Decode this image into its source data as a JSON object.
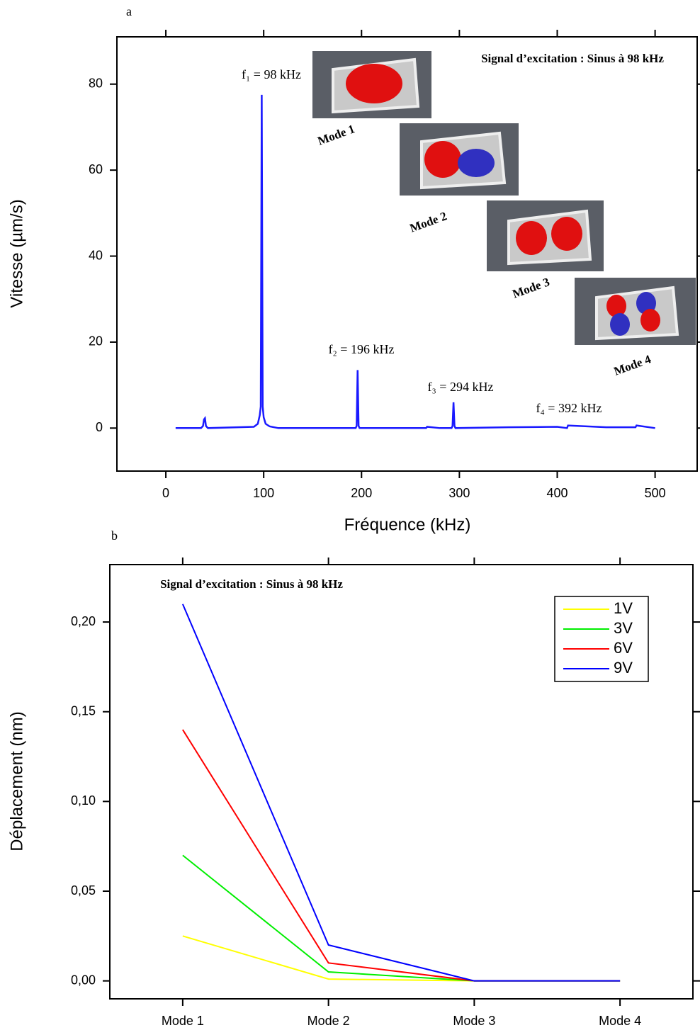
{
  "chart_data": [
    {
      "type": "line",
      "panel": "a",
      "x_label": "Fréquence (kHz)",
      "y_label": "Vitesse (µm/s)",
      "inset_text": "Signal d’excitation : Sinus à 98 kHz",
      "annotations": [
        "f₁ = 98 kHz",
        "f₂ = 196 kHz",
        "f₃ = 294 kHz",
        "f₄ = 392 kHz"
      ],
      "mode_labels": [
        "Mode 1",
        "Mode 2",
        "Mode 3",
        "Mode 4"
      ],
      "xlim": [
        -50,
        543
      ],
      "xticks": [
        0,
        100,
        200,
        300,
        400,
        500
      ],
      "ylim": [
        -10,
        91
      ],
      "yticks": [
        0,
        20,
        40,
        60,
        80
      ],
      "color": "#1a1aff",
      "x": [
        10,
        36,
        38,
        39,
        40,
        41,
        43,
        90,
        94,
        96,
        97,
        98,
        99,
        100,
        102,
        106,
        115,
        150,
        194,
        195,
        196,
        197,
        198,
        250,
        266,
        267,
        280,
        292,
        293,
        294,
        295,
        296,
        350,
        400,
        410,
        411,
        450,
        480,
        481,
        500
      ],
      "values": [
        0,
        0,
        0.5,
        2,
        2.3,
        0.5,
        0,
        0.3,
        1,
        3,
        5,
        77.5,
        5,
        2.5,
        1,
        0.4,
        0,
        0,
        0,
        0.5,
        13.5,
        0.5,
        0,
        0,
        0,
        0.3,
        0,
        0,
        0.5,
        6,
        0.5,
        0,
        0.2,
        0.3,
        0,
        0.6,
        0.2,
        0.2,
        0.6,
        0
      ]
    },
    {
      "type": "line",
      "panel": "b",
      "y_label": "Déplacement (nm)",
      "inset_text": "Signal d’excitation : Sinus à 98 kHz",
      "categories": [
        "Mode 1",
        "Mode 2",
        "Mode 3",
        "Mode 4"
      ],
      "ylim": [
        -0.01,
        0.232
      ],
      "yticks": [
        {
          "value": 0,
          "label": "0,00"
        },
        {
          "value": 0.05,
          "label": "0,05"
        },
        {
          "value": 0.1,
          "label": "0,10"
        },
        {
          "value": 0.15,
          "label": "0,15"
        },
        {
          "value": 0.2,
          "label": "0,20"
        }
      ],
      "legend": "upper right",
      "series": [
        {
          "name": "1V",
          "color": "#ffff00",
          "values": [
            0.025,
            0.001,
            0,
            0
          ]
        },
        {
          "name": "3V",
          "color": "#00ee00",
          "values": [
            0.07,
            0.005,
            0,
            0
          ]
        },
        {
          "name": "6V",
          "color": "#ff0000",
          "values": [
            0.14,
            0.01,
            0,
            0
          ]
        },
        {
          "name": "9V",
          "color": "#0000ff",
          "values": [
            0.21,
            0.02,
            0,
            0
          ]
        }
      ]
    }
  ]
}
